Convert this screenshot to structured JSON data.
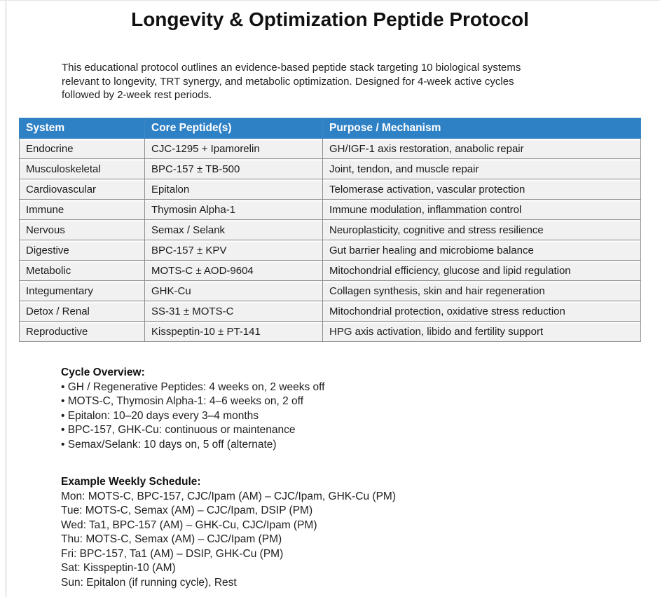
{
  "page": {
    "title": "Longevity & Optimization Peptide Protocol",
    "intro": "This educational protocol outlines an evidence-based peptide stack targeting 10 biological systems\nrelevant to longevity, TRT synergy, and metabolic optimization. Designed for 4-week active cycles\nfollowed by 2-week rest periods."
  },
  "table": {
    "headers": [
      "System",
      "Core Peptide(s)",
      "Purpose / Mechanism"
    ],
    "rows": [
      [
        "Endocrine",
        "CJC-1295 + Ipamorelin",
        "GH/IGF-1 axis restoration, anabolic repair"
      ],
      [
        "Musculoskeletal",
        "BPC-157 ± TB-500",
        "Joint, tendon, and muscle repair"
      ],
      [
        "Cardiovascular",
        "Epitalon",
        "Telomerase activation, vascular protection"
      ],
      [
        "Immune",
        "Thymosin Alpha-1",
        "Immune modulation, inflammation control"
      ],
      [
        "Nervous",
        "Semax / Selank",
        "Neuroplasticity, cognitive and stress resilience"
      ],
      [
        "Digestive",
        "BPC-157 ± KPV",
        "Gut barrier healing and microbiome balance"
      ],
      [
        "Metabolic",
        "MOTS-C ± AOD-9604",
        "Mitochondrial efficiency, glucose and lipid regulation"
      ],
      [
        "Integumentary",
        "GHK-Cu",
        "Collagen synthesis, skin and hair regeneration"
      ],
      [
        "Detox / Renal",
        "SS-31 ± MOTS-C",
        "Mitochondrial protection, oxidative stress reduction"
      ],
      [
        "Reproductive",
        "Kisspeptin-10 ± PT-141",
        "HPG axis activation, libido and fertility support"
      ]
    ]
  },
  "cycle": {
    "heading": "Cycle Overview:",
    "items": [
      "• GH / Regenerative Peptides: 4 weeks on, 2 weeks off",
      "• MOTS-C, Thymosin Alpha-1: 4–6 weeks on, 2 off",
      "• Epitalon: 10–20 days every 3–4 months",
      "• BPC-157, GHK-Cu: continuous or maintenance",
      "• Semax/Selank: 10 days on, 5 off (alternate)"
    ]
  },
  "schedule": {
    "heading": "Example Weekly Schedule:",
    "days": [
      "Mon: MOTS-C, BPC-157, CJC/Ipam (AM) – CJC/Ipam, GHK-Cu (PM)",
      "Tue: MOTS-C, Semax (AM) – CJC/Ipam, DSIP (PM)",
      "Wed: Ta1, BPC-157 (AM) – GHK-Cu, CJC/Ipam (PM)",
      "Thu: MOTS-C, Semax (AM) – CJC/Ipam (PM)",
      "Fri: BPC-157, Ta1 (AM) – DSIP, GHK-Cu (PM)",
      "Sat: Kisspeptin-10 (AM)",
      "Sun: Epitalon (if running cycle), Rest"
    ]
  },
  "colors": {
    "header_bg": "#2f81c6",
    "header_text": "#ffffff",
    "row_bg": "#f1f1f1",
    "border": "#8f8f8f"
  }
}
